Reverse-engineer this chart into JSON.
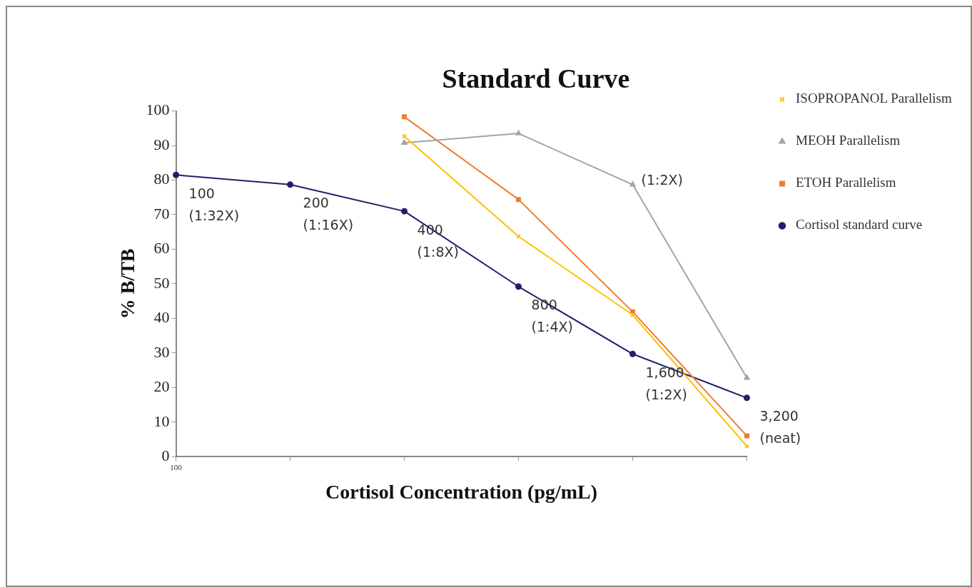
{
  "chart_data": {
    "type": "line",
    "title": "Standard Curve",
    "xlabel": "Cortisol Concentration (pg/mL)",
    "ylabel": "% B/TB",
    "categories": [
      "100",
      null,
      null,
      null,
      null,
      null
    ],
    "ylim": [
      0,
      100
    ],
    "yticks": [
      0,
      10,
      20,
      30,
      40,
      50,
      60,
      70,
      80,
      90,
      100
    ],
    "grid": false,
    "legend": "right",
    "series": [
      {
        "name": "Cortisol standard curve",
        "color": "#1f1f6b",
        "marker": "circle",
        "values": [
          81.5,
          78.7,
          71,
          49.2,
          29.7,
          17
        ]
      },
      {
        "name": "ETOH Parallelism",
        "color": "#ed7d31",
        "marker": "square",
        "values": [
          null,
          null,
          98.3,
          74.4,
          41.9,
          6
        ]
      },
      {
        "name": "MEOH Parallelism",
        "color": "#a5a5a5",
        "marker": "triangle",
        "values": [
          null,
          null,
          90.8,
          93.5,
          78.7,
          22.8
        ]
      },
      {
        "name": "ISOPROPANOL Parallelism",
        "color": "#ffc000",
        "marker": "cross",
        "values": [
          null,
          null,
          92.7,
          63.7,
          41,
          3
        ]
      }
    ],
    "annotations": [
      {
        "text": "100\n(1:32X)",
        "x": "100",
        "y": 81.5
      },
      "200\n(1:16X)",
      "400\n(1:8X)",
      "800\n(1:4X)",
      "1,600\n(1:2X)",
      "3,200\n(neat)",
      "(1:2X)"
    ]
  }
}
